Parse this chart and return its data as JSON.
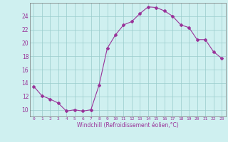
{
  "hours": [
    0,
    1,
    2,
    3,
    4,
    5,
    6,
    7,
    8,
    9,
    10,
    11,
    12,
    13,
    14,
    15,
    16,
    17,
    18,
    19,
    20,
    21,
    22,
    23
  ],
  "values": [
    13.5,
    12.1,
    11.6,
    11.0,
    9.8,
    10.0,
    9.8,
    10.0,
    13.7,
    19.2,
    21.2,
    22.7,
    23.2,
    24.4,
    25.4,
    25.3,
    24.8,
    24.0,
    22.7,
    22.3,
    20.5,
    20.5,
    18.7,
    17.7
  ],
  "line_color": "#993399",
  "marker": "D",
  "marker_size": 2,
  "bg_color": "#cff0f0",
  "grid_color": "#99cccc",
  "xlabel": "Windchill (Refroidissement éolien,°C)",
  "ylim": [
    9,
    26
  ],
  "yticks": [
    10,
    12,
    14,
    16,
    18,
    20,
    22,
    24
  ],
  "figsize": [
    3.2,
    2.0
  ],
  "dpi": 100
}
